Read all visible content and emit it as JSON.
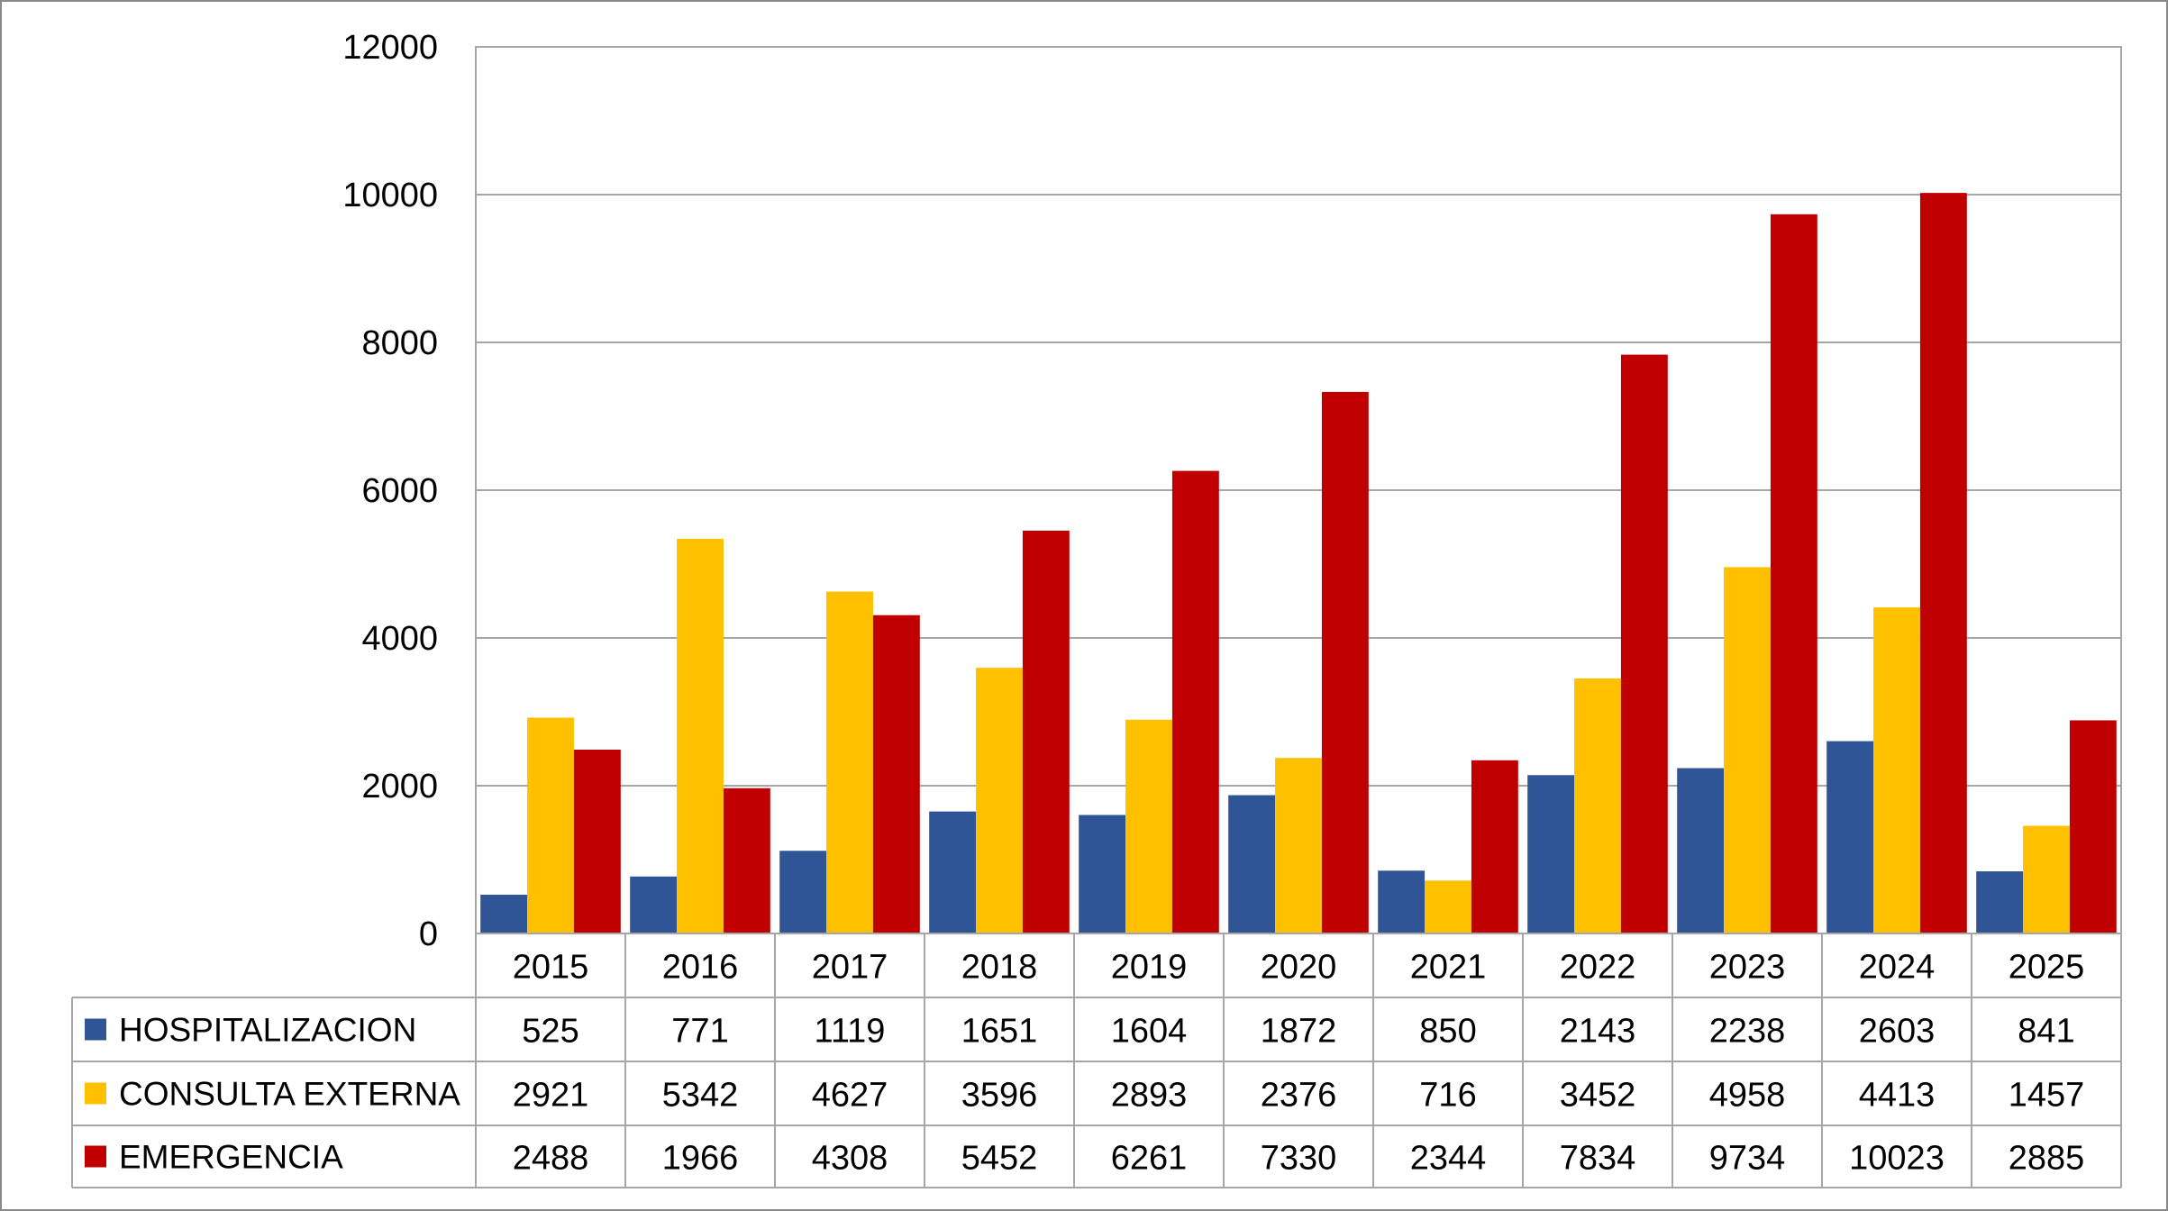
{
  "chart_data": {
    "type": "bar",
    "title": "",
    "xlabel": "",
    "ylabel": "",
    "ylim": [
      0,
      12000
    ],
    "yticks": [
      0,
      2000,
      4000,
      6000,
      8000,
      10000,
      12000
    ],
    "grid": true,
    "legend": "data-table-left",
    "categories": [
      "2015",
      "2016",
      "2017",
      "2018",
      "2019",
      "2020",
      "2021",
      "2022",
      "2023",
      "2024",
      "2025"
    ],
    "series": [
      {
        "name": "HOSPITALIZACION",
        "color": "#2F5597",
        "values": [
          525,
          771,
          1119,
          1651,
          1604,
          1872,
          850,
          2143,
          2238,
          2603,
          841
        ]
      },
      {
        "name": "CONSULTA EXTERNA",
        "color": "#FFC000",
        "values": [
          2921,
          5342,
          4627,
          3596,
          2893,
          2376,
          716,
          3452,
          4958,
          4413,
          1457
        ]
      },
      {
        "name": "EMERGENCIA",
        "color": "#C00000",
        "values": [
          2488,
          1966,
          4308,
          5452,
          6261,
          7330,
          2344,
          7834,
          9734,
          10023,
          2885
        ]
      }
    ]
  }
}
